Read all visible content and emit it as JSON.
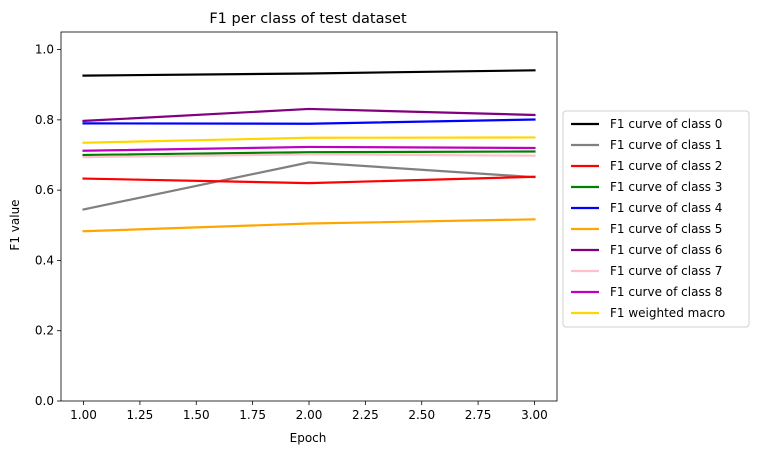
{
  "chart_data": {
    "type": "line",
    "title": "F1 per class of test dataset",
    "xlabel": "Epoch",
    "ylabel": "F1 value",
    "xlim": [
      0.9,
      3.1
    ],
    "ylim": [
      0.0,
      1.05
    ],
    "xticks": [
      1.0,
      1.25,
      1.5,
      1.75,
      2.0,
      2.25,
      2.5,
      2.75,
      3.0
    ],
    "xtick_labels": [
      "1.00",
      "1.25",
      "1.50",
      "1.75",
      "2.00",
      "2.25",
      "2.50",
      "2.75",
      "3.00"
    ],
    "yticks": [
      0.0,
      0.2,
      0.4,
      0.6,
      0.8,
      1.0
    ],
    "ytick_labels": [
      "0.0",
      "0.2",
      "0.4",
      "0.6",
      "0.8",
      "1.0"
    ],
    "grid": false,
    "legend_position": "outside-right",
    "x": [
      1,
      2,
      3
    ],
    "series": [
      {
        "name": "F1 curve of class 0",
        "color": "#000000",
        "values": [
          0.926,
          0.932,
          0.941
        ]
      },
      {
        "name": "F1 curve of class 1",
        "color": "#808080",
        "values": [
          0.545,
          0.679,
          0.637
        ]
      },
      {
        "name": "F1 curve of class 2",
        "color": "#ff0000",
        "values": [
          0.633,
          0.62,
          0.638
        ]
      },
      {
        "name": "F1 curve of class 3",
        "color": "#008000",
        "values": [
          0.7,
          0.708,
          0.71
        ]
      },
      {
        "name": "F1 curve of class 4",
        "color": "#0000ff",
        "values": [
          0.79,
          0.789,
          0.801
        ]
      },
      {
        "name": "F1 curve of class 5",
        "color": "#ffa500",
        "values": [
          0.483,
          0.505,
          0.517
        ]
      },
      {
        "name": "F1 curve of class 6",
        "color": "#800080",
        "values": [
          0.797,
          0.831,
          0.814
        ]
      },
      {
        "name": "F1 curve of class 7",
        "color": "#ffc0cb",
        "values": [
          0.694,
          0.702,
          0.698
        ]
      },
      {
        "name": "F1 curve of class 8",
        "color": "#c000c0",
        "values": [
          0.712,
          0.723,
          0.72
        ]
      },
      {
        "name": "F1 weighted macro",
        "color": "#ffd700",
        "values": [
          0.735,
          0.749,
          0.75
        ]
      }
    ]
  }
}
